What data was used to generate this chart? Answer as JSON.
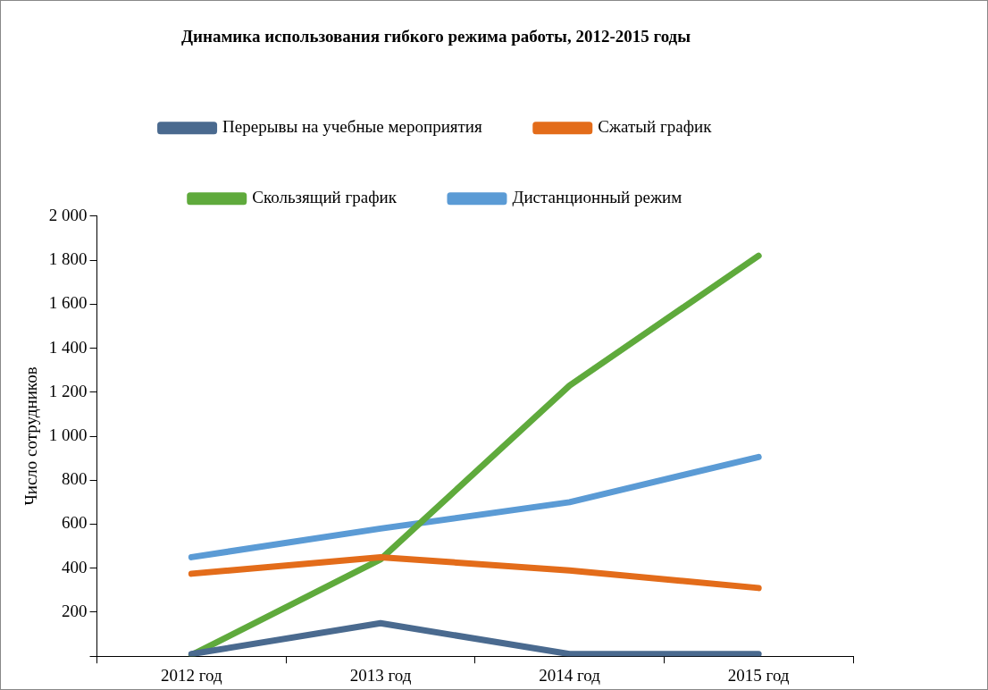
{
  "chart_data": {
    "type": "line",
    "title": "Динамика использования гибкого режима работы, 2012-2015 годы",
    "ylabel": "Число сотрудников",
    "categories": [
      "2012 год",
      "2013 год",
      "2014 год",
      "2015 год"
    ],
    "series": [
      {
        "name": "Перерывы на учебные мероприятия",
        "color": "#4a6a8f",
        "values": [
          10,
          150,
          10,
          10
        ]
      },
      {
        "name": "Сжатый график",
        "color": "#e36c1a",
        "values": [
          375,
          450,
          390,
          310
        ]
      },
      {
        "name": "Скользящий график",
        "color": "#5faa3c",
        "values": [
          5,
          440,
          1230,
          1820
        ]
      },
      {
        "name": "Дистанционный режим",
        "color": "#5b9bd5",
        "values": [
          450,
          580,
          700,
          905
        ]
      }
    ],
    "ylim": [
      0,
      2000
    ],
    "yticks": [
      {
        "value": 0,
        "label": null
      },
      {
        "value": 200,
        "label": "200"
      },
      {
        "value": 400,
        "label": "400"
      },
      {
        "value": 600,
        "label": "600"
      },
      {
        "value": 800,
        "label": "800"
      },
      {
        "value": 1000,
        "label": "1 000"
      },
      {
        "value": 1200,
        "label": "1 200"
      },
      {
        "value": 1400,
        "label": "1 400"
      },
      {
        "value": 1600,
        "label": "1 600"
      },
      {
        "value": 1800,
        "label": "1 800"
      },
      {
        "value": 2000,
        "label": "2 000"
      }
    ],
    "grid": false,
    "legend": "top",
    "marker": "none",
    "line_style": "solid"
  }
}
